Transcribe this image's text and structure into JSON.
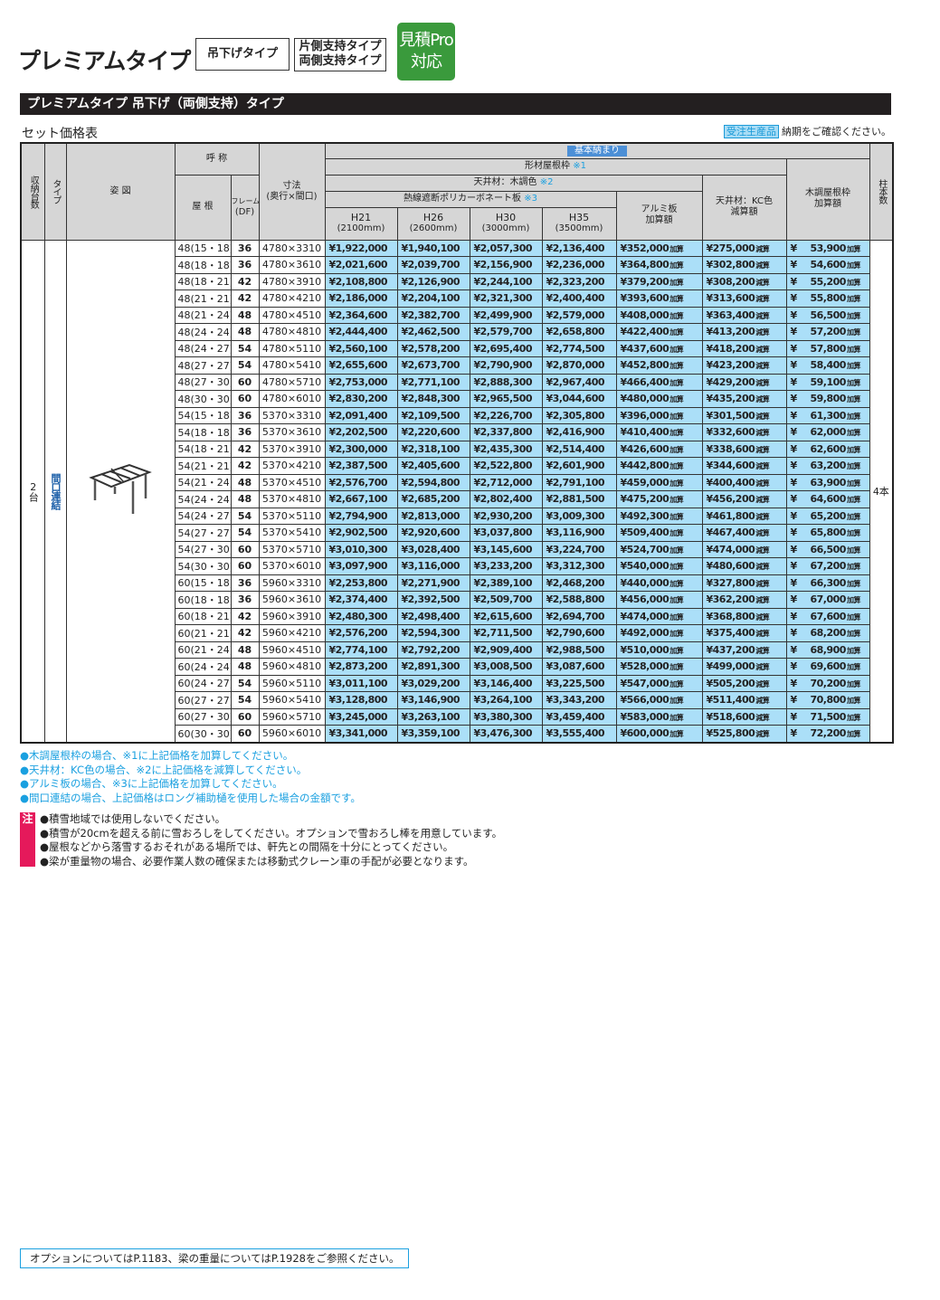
{
  "header": {
    "title": "プレミアムタイプ",
    "tag1": "吊下げタイプ",
    "tag2a": "片側支持タイプ",
    "tag2b": "両側支持タイプ",
    "pro_a": "見積Pro",
    "pro_b": "対応"
  },
  "section_title": "プレミアムタイプ 吊下げ（両側支持）タイプ",
  "subtitle": "セット価格表",
  "order": {
    "badge": "受注生産品",
    "text": "納期をご確認ください。"
  },
  "table": {
    "h_count": "収納台数",
    "h_type": "タイプ",
    "h_fig": "姿 図",
    "h_name": "呼 称",
    "h_roof": "屋 根",
    "h_frame": "フレーム",
    "h_frame2": "(DF)",
    "h_size": "寸法",
    "h_size2": "(奥行×間口)",
    "h_basic": "基本納まり",
    "h_keizai": "形材屋根枠",
    "n1": "※1",
    "h_ceil": "天井材：木調色",
    "n2": "※2",
    "h_poly": "熱線遮断ポリカーボネート板",
    "n3": "※3",
    "h_alumi": "アルミ板",
    "h_alumi2": "加算額",
    "h_kc": "天井材：KC色",
    "h_kc2": "減算額",
    "h_wood": "木調屋根枠",
    "h_wood2": "加算額",
    "h_posts": "柱本数",
    "heights": [
      {
        "h": "H21",
        "mm": "(2100mm)"
      },
      {
        "h": "H26",
        "mm": "(2600mm)"
      },
      {
        "h": "H30",
        "mm": "(3000mm)"
      },
      {
        "h": "H35",
        "mm": "(3500mm)"
      }
    ],
    "count": "2台",
    "type": "間口連結",
    "posts": "4本",
    "add": "加算",
    "sub": "減算",
    "yen": "¥",
    "rows": [
      [
        "48(15・18)",
        "36",
        "4780×3310",
        "¥1,922,000",
        "¥1,940,100",
        "¥2,057,300",
        "¥2,136,400",
        "¥352,000",
        "¥275,000",
        "53,900"
      ],
      [
        "48(18・18)",
        "36",
        "4780×3610",
        "¥2,021,600",
        "¥2,039,700",
        "¥2,156,900",
        "¥2,236,000",
        "¥364,800",
        "¥302,800",
        "54,600"
      ],
      [
        "48(18・21)",
        "42",
        "4780×3910",
        "¥2,108,800",
        "¥2,126,900",
        "¥2,244,100",
        "¥2,323,200",
        "¥379,200",
        "¥308,200",
        "55,200"
      ],
      [
        "48(21・21)",
        "42",
        "4780×4210",
        "¥2,186,000",
        "¥2,204,100",
        "¥2,321,300",
        "¥2,400,400",
        "¥393,600",
        "¥313,600",
        "55,800"
      ],
      [
        "48(21・24)",
        "48",
        "4780×4510",
        "¥2,364,600",
        "¥2,382,700",
        "¥2,499,900",
        "¥2,579,000",
        "¥408,000",
        "¥363,400",
        "56,500"
      ],
      [
        "48(24・24)",
        "48",
        "4780×4810",
        "¥2,444,400",
        "¥2,462,500",
        "¥2,579,700",
        "¥2,658,800",
        "¥422,400",
        "¥413,200",
        "57,200"
      ],
      [
        "48(24・27)",
        "54",
        "4780×5110",
        "¥2,560,100",
        "¥2,578,200",
        "¥2,695,400",
        "¥2,774,500",
        "¥437,600",
        "¥418,200",
        "57,800"
      ],
      [
        "48(27・27)",
        "54",
        "4780×5410",
        "¥2,655,600",
        "¥2,673,700",
        "¥2,790,900",
        "¥2,870,000",
        "¥452,800",
        "¥423,200",
        "58,400"
      ],
      [
        "48(27・30)",
        "60",
        "4780×5710",
        "¥2,753,000",
        "¥2,771,100",
        "¥2,888,300",
        "¥2,967,400",
        "¥466,400",
        "¥429,200",
        "59,100"
      ],
      [
        "48(30・30)",
        "60",
        "4780×6010",
        "¥2,830,200",
        "¥2,848,300",
        "¥2,965,500",
        "¥3,044,600",
        "¥480,000",
        "¥435,200",
        "59,800"
      ],
      [
        "54(15・18)",
        "36",
        "5370×3310",
        "¥2,091,400",
        "¥2,109,500",
        "¥2,226,700",
        "¥2,305,800",
        "¥396,000",
        "¥301,500",
        "61,300"
      ],
      [
        "54(18・18)",
        "36",
        "5370×3610",
        "¥2,202,500",
        "¥2,220,600",
        "¥2,337,800",
        "¥2,416,900",
        "¥410,400",
        "¥332,600",
        "62,000"
      ],
      [
        "54(18・21)",
        "42",
        "5370×3910",
        "¥2,300,000",
        "¥2,318,100",
        "¥2,435,300",
        "¥2,514,400",
        "¥426,600",
        "¥338,600",
        "62,600"
      ],
      [
        "54(21・21)",
        "42",
        "5370×4210",
        "¥2,387,500",
        "¥2,405,600",
        "¥2,522,800",
        "¥2,601,900",
        "¥442,800",
        "¥344,600",
        "63,200"
      ],
      [
        "54(21・24)",
        "48",
        "5370×4510",
        "¥2,576,700",
        "¥2,594,800",
        "¥2,712,000",
        "¥2,791,100",
        "¥459,000",
        "¥400,400",
        "63,900"
      ],
      [
        "54(24・24)",
        "48",
        "5370×4810",
        "¥2,667,100",
        "¥2,685,200",
        "¥2,802,400",
        "¥2,881,500",
        "¥475,200",
        "¥456,200",
        "64,600"
      ],
      [
        "54(24・27)",
        "54",
        "5370×5110",
        "¥2,794,900",
        "¥2,813,000",
        "¥2,930,200",
        "¥3,009,300",
        "¥492,300",
        "¥461,800",
        "65,200"
      ],
      [
        "54(27・27)",
        "54",
        "5370×5410",
        "¥2,902,500",
        "¥2,920,600",
        "¥3,037,800",
        "¥3,116,900",
        "¥509,400",
        "¥467,400",
        "65,800"
      ],
      [
        "54(27・30)",
        "60",
        "5370×5710",
        "¥3,010,300",
        "¥3,028,400",
        "¥3,145,600",
        "¥3,224,700",
        "¥524,700",
        "¥474,000",
        "66,500"
      ],
      [
        "54(30・30)",
        "60",
        "5370×6010",
        "¥3,097,900",
        "¥3,116,000",
        "¥3,233,200",
        "¥3,312,300",
        "¥540,000",
        "¥480,600",
        "67,200"
      ],
      [
        "60(15・18)",
        "36",
        "5960×3310",
        "¥2,253,800",
        "¥2,271,900",
        "¥2,389,100",
        "¥2,468,200",
        "¥440,000",
        "¥327,800",
        "66,300"
      ],
      [
        "60(18・18)",
        "36",
        "5960×3610",
        "¥2,374,400",
        "¥2,392,500",
        "¥2,509,700",
        "¥2,588,800",
        "¥456,000",
        "¥362,200",
        "67,000"
      ],
      [
        "60(18・21)",
        "42",
        "5960×3910",
        "¥2,480,300",
        "¥2,498,400",
        "¥2,615,600",
        "¥2,694,700",
        "¥474,000",
        "¥368,800",
        "67,600"
      ],
      [
        "60(21・21)",
        "42",
        "5960×4210",
        "¥2,576,200",
        "¥2,594,300",
        "¥2,711,500",
        "¥2,790,600",
        "¥492,000",
        "¥375,400",
        "68,200"
      ],
      [
        "60(21・24)",
        "48",
        "5960×4510",
        "¥2,774,100",
        "¥2,792,200",
        "¥2,909,400",
        "¥2,988,500",
        "¥510,000",
        "¥437,200",
        "68,900"
      ],
      [
        "60(24・24)",
        "48",
        "5960×4810",
        "¥2,873,200",
        "¥2,891,300",
        "¥3,008,500",
        "¥3,087,600",
        "¥528,000",
        "¥499,000",
        "69,600"
      ],
      [
        "60(24・27)",
        "54",
        "5960×5110",
        "¥3,011,100",
        "¥3,029,200",
        "¥3,146,400",
        "¥3,225,500",
        "¥547,000",
        "¥505,200",
        "70,200"
      ],
      [
        "60(27・27)",
        "54",
        "5960×5410",
        "¥3,128,800",
        "¥3,146,900",
        "¥3,264,100",
        "¥3,343,200",
        "¥566,000",
        "¥511,400",
        "70,800"
      ],
      [
        "60(27・30)",
        "60",
        "5960×5710",
        "¥3,245,000",
        "¥3,263,100",
        "¥3,380,300",
        "¥3,459,400",
        "¥583,000",
        "¥518,600",
        "71,500"
      ],
      [
        "60(30・30)",
        "60",
        "5960×6010",
        "¥3,341,000",
        "¥3,359,100",
        "¥3,476,300",
        "¥3,555,400",
        "¥600,000",
        "¥525,800",
        "72,200"
      ]
    ]
  },
  "notes": [
    "●木調屋根枠の場合、※1に上記価格を加算してください。",
    "●天井材：KC色の場合、※2に上記価格を減算してください。",
    "●アルミ板の場合、※3に上記価格を加算してください。",
    "●間口連結の場合、上記価格はロング補助樋を使用した場合の金額です。"
  ],
  "warning": {
    "mark": "注",
    "lines": [
      "●積雪地域では使用しないでください。",
      "●積雪が20cmを超える前に雪おろしをしてください。オプションで雪おろし棒を用意しています。",
      "●屋根などから落雪するおそれがある場所では、軒先との間隔を十分にとってください。",
      "●梁が重量物の場合、必要作業人数の確保または移動式クレーン車の手配が必要となります。"
    ]
  },
  "footer": "オプションについてはP.1183、梁の重量についてはP.1928をご参照ください。",
  "colors": {
    "price_cell": "#abdff8",
    "header_cell": "#d6d6d6",
    "accent_blue": "#1aa0e0",
    "pro_green": "#3a9a3c",
    "warn_pink": "#e5195b"
  }
}
